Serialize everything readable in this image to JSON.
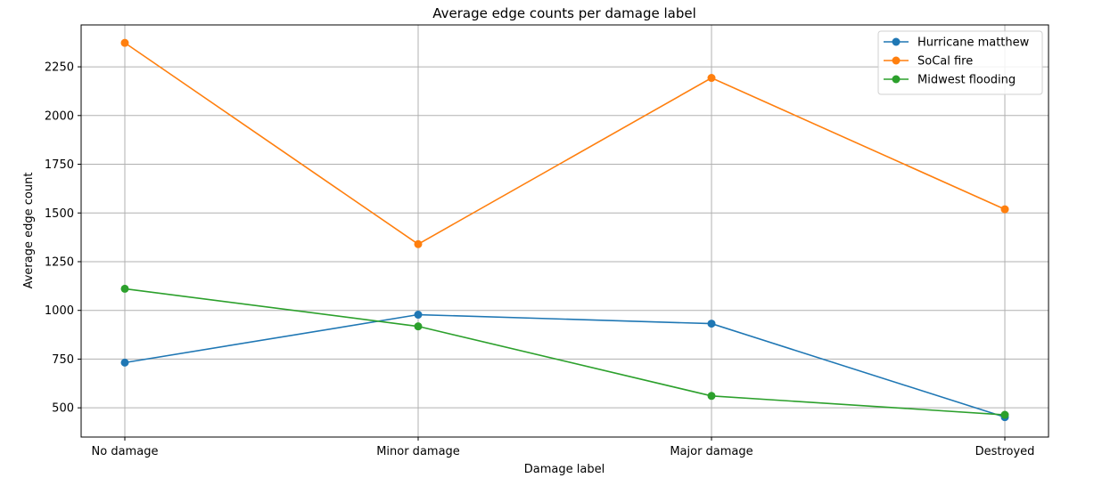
{
  "chart_data": {
    "type": "line",
    "title": "Average edge counts per damage label",
    "xlabel": "Damage label",
    "ylabel": "Average edge count",
    "categories": [
      "No damage",
      "Minor damage",
      "Major damage",
      "Destroyed"
    ],
    "yticks": [
      500,
      750,
      1000,
      1250,
      1500,
      1750,
      2000,
      2250
    ],
    "ylim": [
      350,
      2465
    ],
    "grid": true,
    "legend_position": "top-right",
    "series": [
      {
        "name": "Hurricane matthew",
        "color": "#1f77b4",
        "values": [
          732,
          978,
          932,
          452
        ]
      },
      {
        "name": "SoCal fire",
        "color": "#ff7f0e",
        "values": [
          2373,
          1340,
          2193,
          1519
        ]
      },
      {
        "name": "Midwest flooding",
        "color": "#2ca02c",
        "values": [
          1111,
          918,
          561,
          464
        ]
      }
    ]
  }
}
